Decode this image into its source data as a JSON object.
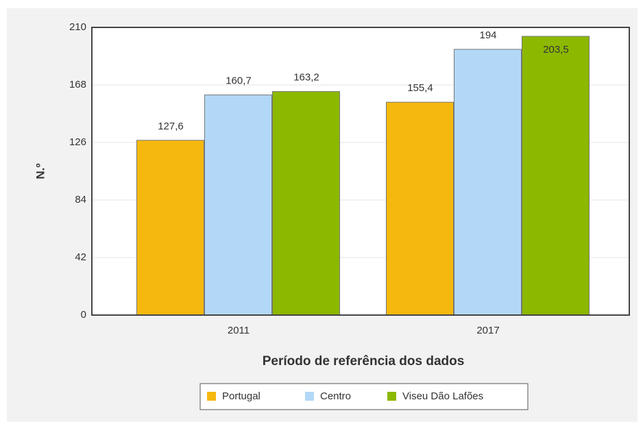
{
  "chart_data": {
    "type": "bar",
    "categories": [
      "2011",
      "2017"
    ],
    "series": [
      {
        "name": "Portugal",
        "color": "#f5b80f",
        "values": [
          127.6,
          155.4
        ],
        "value_labels": [
          "127,6",
          "155,4"
        ]
      },
      {
        "name": "Centro",
        "color": "#b3d8f7",
        "values": [
          160.7,
          194
        ],
        "value_labels": [
          "160,7",
          "194"
        ]
      },
      {
        "name": "Viseu Dão Lafões",
        "color": "#8cb800",
        "values": [
          163.2,
          203.5
        ],
        "value_labels": [
          "163,2",
          "203,5"
        ]
      }
    ],
    "y_label": "N.º",
    "x_label": "Período de referência dos dados",
    "ylim": [
      0,
      210
    ],
    "yticks": [
      0,
      42,
      84,
      126,
      168,
      210
    ],
    "grid": true,
    "legend": "bottom"
  }
}
